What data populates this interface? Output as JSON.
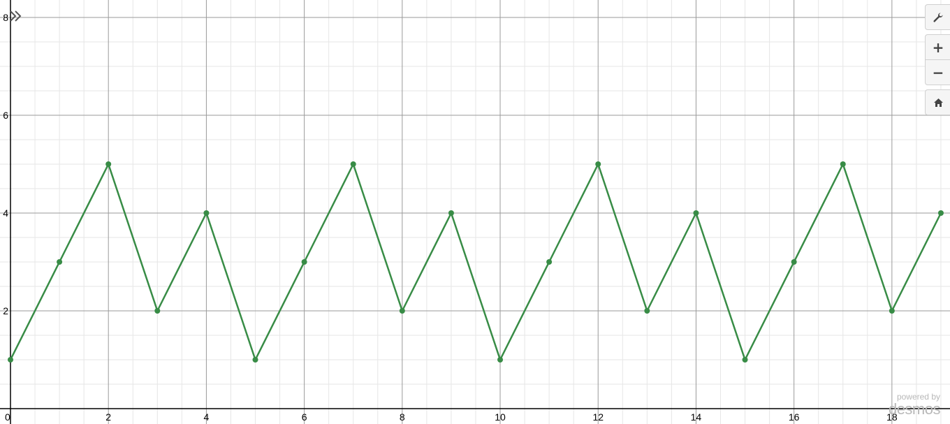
{
  "chart_data": {
    "type": "line",
    "title": "",
    "xlabel": "",
    "ylabel": "",
    "xlim": [
      0,
      19.4
    ],
    "ylim": [
      -0.3,
      8.35
    ],
    "grid": true,
    "x_ticks": [
      0,
      2,
      4,
      6,
      8,
      10,
      12,
      14,
      16,
      18
    ],
    "y_ticks": [
      2,
      4,
      6,
      8
    ],
    "x_tick_labels": [
      "0",
      "2",
      "4",
      "6",
      "8",
      "10",
      "12",
      "14",
      "16",
      "18"
    ],
    "y_tick_labels": [
      "2",
      "4",
      "6",
      "8"
    ],
    "series": [
      {
        "color": "#388c46",
        "x": [
          0,
          1,
          2,
          3,
          4,
          5,
          6,
          7,
          8,
          9,
          10,
          11,
          12,
          13,
          14,
          15,
          16,
          17,
          18,
          19
        ],
        "y": [
          1,
          3,
          5,
          2,
          4,
          1,
          3,
          5,
          2,
          4,
          1,
          3,
          5,
          2,
          4,
          1,
          3,
          5,
          2,
          4
        ]
      }
    ]
  },
  "controls": {
    "settings_icon": "wrench-icon",
    "zoom_in_label": "+",
    "zoom_out_label": "−",
    "home_icon": "home-icon",
    "expand_icon": "double-chevron-right-icon"
  },
  "watermark": {
    "line1": "powered by",
    "line2": "desmos"
  }
}
